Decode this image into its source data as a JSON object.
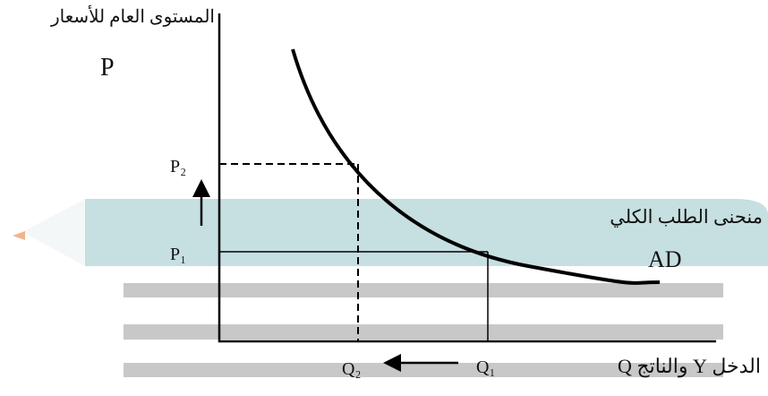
{
  "y_axis_title": "المستوى العام للأسعار",
  "y_axis_symbol": "P",
  "price_labels": [
    "P₂",
    "P₁"
  ],
  "curve_title": "منحنى الطلب الكلي",
  "curve_label": "AD",
  "quantity_labels": [
    "Q₂",
    "Q₁"
  ],
  "x_axis_title": "الدخل Y والناتج Q"
}
